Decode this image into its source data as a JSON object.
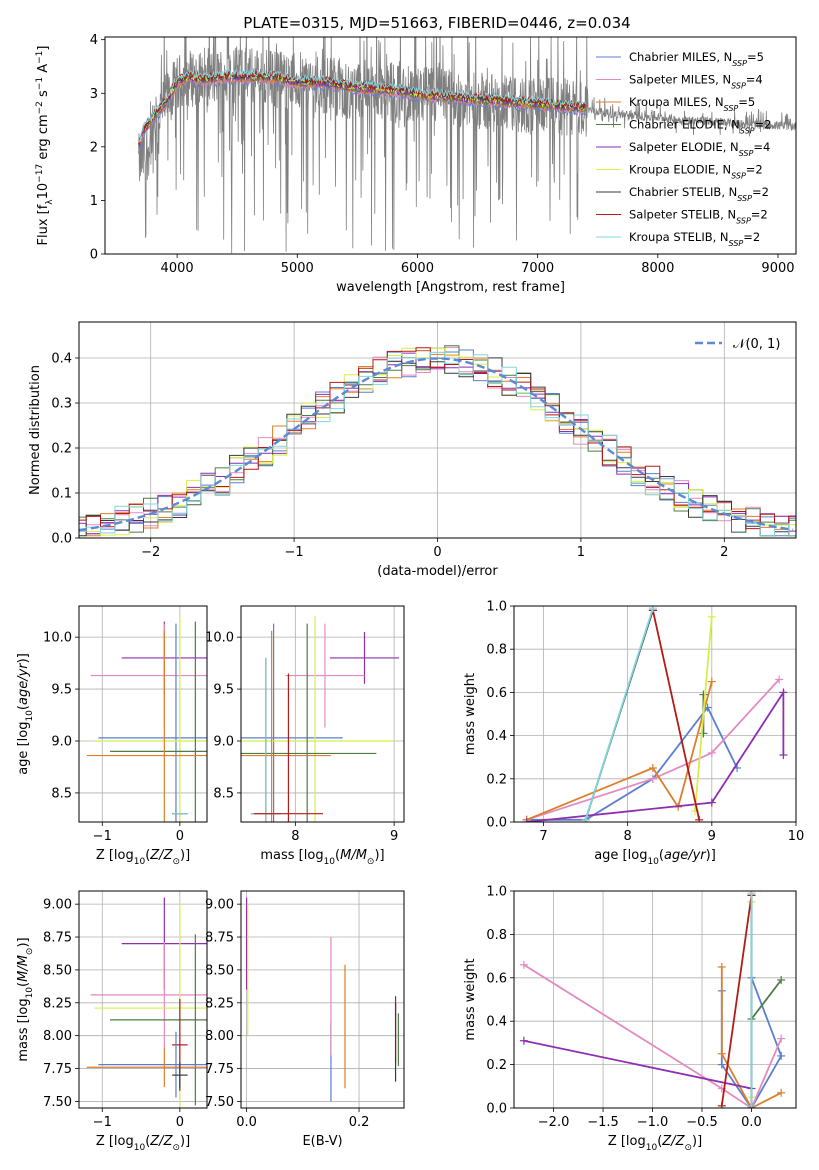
{
  "figure_title": "PLATE=0315, MJD=51663, FIBERID=0446, z=0.034",
  "colors": {
    "Chabrier MILES": "#5b7fd0",
    "Salpeter MILES": "#e38ac1",
    "Kroupa MILES": "#dd7e2a",
    "Chabrier ELODIE": "#4f7b45",
    "Salpeter ELODIE": "#8e2fb0",
    "Kroupa ELODIE": "#d8ee47",
    "Chabrier STELIB": "#3a3a3a",
    "Salpeter STELIB": "#b51b16",
    "Kroupa STELIB": "#83d5dd",
    "data": "#7f7f7f",
    "normal": "#5b8ad6"
  },
  "chart_data": [
    {
      "type": "line",
      "title": "PLATE=0315, MJD=51663, FIBERID=0446, z=0.034",
      "xlabel": "wavelength [Angstrom, rest frame]",
      "ylabel": "Flux [f_λ 10^-17 erg cm^-2 s^-1 A^-1]",
      "xlim": [
        3400,
        9150
      ],
      "ylim": [
        0,
        4.05
      ],
      "xticks": [
        4000,
        5000,
        6000,
        7000,
        8000,
        9000
      ],
      "yticks": [
        0,
        1,
        2,
        3,
        4
      ],
      "legend_position": "top-right",
      "legend": [
        {
          "label": "Chabrier MILES",
          "nssp": "5"
        },
        {
          "label": "Salpeter MILES",
          "nssp": "4"
        },
        {
          "label": "Kroupa MILES",
          "nssp": "5"
        },
        {
          "label": "Chabrier ELODIE",
          "nssp": "2"
        },
        {
          "label": "Salpeter ELODIE",
          "nssp": "4"
        },
        {
          "label": "Kroupa ELODIE",
          "nssp": "2"
        },
        {
          "label": "Chabrier STELIB",
          "nssp": "2"
        },
        {
          "label": "Salpeter STELIB",
          "nssp": "2"
        },
        {
          "label": "Kroupa STELIB",
          "nssp": "2"
        }
      ],
      "legend_nssp_label": "N_SSP",
      "data_series": {
        "x": [
          3680,
          3750,
          3850,
          3950,
          4050,
          4150,
          4300,
          4500,
          4700,
          4900,
          5100,
          5300,
          5500,
          5700,
          5900,
          6100,
          6300,
          6500,
          6700,
          6900,
          7100,
          7300,
          7420,
          7600,
          7800,
          8000,
          8200,
          8400,
          8600,
          8800,
          9000,
          9150
        ],
        "y": [
          1.7,
          1.9,
          2.6,
          3.0,
          3.25,
          3.3,
          3.3,
          3.35,
          3.3,
          3.25,
          3.2,
          3.15,
          3.1,
          3.05,
          3.0,
          2.95,
          2.9,
          2.85,
          2.8,
          2.78,
          2.75,
          2.72,
          2.7,
          2.62,
          2.58,
          2.55,
          2.5,
          2.48,
          2.45,
          2.42,
          2.4,
          2.38
        ]
      },
      "model_envelope": {
        "x": [
          3680,
          3720,
          3800,
          3900,
          4000,
          4100,
          4200,
          4400,
          4600,
          4800,
          5000,
          5200,
          5500,
          5800,
          6100,
          6400,
          6700,
          7000,
          7200,
          7400
        ],
        "y": [
          2.0,
          2.3,
          2.55,
          2.8,
          3.2,
          3.3,
          3.25,
          3.3,
          3.3,
          3.3,
          3.2,
          3.2,
          3.1,
          3.05,
          2.95,
          2.9,
          2.85,
          2.8,
          2.75,
          2.72
        ]
      }
    },
    {
      "type": "histogram",
      "xlabel": "(data-model)/error",
      "ylabel": "Normed distribution",
      "xlim": [
        -2.5,
        2.5
      ],
      "ylim": [
        0,
        0.48
      ],
      "xticks": [
        -2,
        -1,
        0,
        1,
        2
      ],
      "yticks": [
        0.0,
        0.1,
        0.2,
        0.3,
        0.4
      ],
      "legend_position": "top-right",
      "legend": [
        "𝒩(0, 1)"
      ],
      "bin_width": 0.1,
      "reference_curve": "normal(0,1)"
    },
    {
      "type": "errorbar",
      "xlabel": "Z [log10(Z/Z⊙)]",
      "ylabel": "age  [log10(age/yr)]",
      "xlim": [
        -1.3,
        0.35
      ],
      "ylim": [
        8.22,
        10.3
      ],
      "xticks": [
        -1,
        0
      ],
      "yticks": [
        8.5,
        9.0,
        9.5,
        10.0
      ],
      "points": [
        {
          "model": "Salpeter ELODIE",
          "x": -0.2,
          "y": 9.8,
          "xerr": 0.55,
          "yerr": 0.35
        },
        {
          "model": "Salpeter MILES",
          "x": -0.2,
          "y": 9.63,
          "xerr": 0.95,
          "yerr": 0.5
        },
        {
          "model": "Chabrier MILES",
          "x": -0.05,
          "y": 9.03,
          "xerr": 1.0,
          "yerr": 1.1
        },
        {
          "model": "Kroupa ELODIE",
          "x": 0.0,
          "y": 9.0,
          "xerr": 1.1,
          "yerr": 1.2
        },
        {
          "model": "Chabrier ELODIE",
          "x": 0.2,
          "y": 8.9,
          "xerr": 1.1,
          "yerr": 1.25
        },
        {
          "model": "Kroupa MILES",
          "x": -0.2,
          "y": 8.86,
          "xerr": 1.0,
          "yerr": 1.2
        },
        {
          "model": "Chabrier STELIB",
          "x": 0.0,
          "y": 8.3,
          "xerr": 0.1,
          "yerr": 0.0
        },
        {
          "model": "Kroupa STELIB",
          "x": 0.0,
          "y": 8.3,
          "xerr": 0.1,
          "yerr": 0.0
        }
      ]
    },
    {
      "type": "errorbar",
      "xlabel": "mass [log10(M/M⊙)]",
      "xlim": [
        7.45,
        9.1
      ],
      "ylim": [
        8.22,
        10.3
      ],
      "xticks": [
        8,
        9
      ],
      "yticks": [
        8.5,
        9.0,
        9.5,
        10.0
      ],
      "points": [
        {
          "model": "Salpeter ELODIE",
          "x": 8.7,
          "y": 9.8,
          "xerr": 0.35,
          "yerr": 0.25
        },
        {
          "model": "Salpeter MILES",
          "x": 8.3,
          "y": 9.63,
          "xerr": 0.4,
          "yerr": 0.5
        },
        {
          "model": "Chabrier MILES",
          "x": 7.78,
          "y": 9.03,
          "xerr": 0.7,
          "yerr": 1.1
        },
        {
          "model": "Kroupa ELODIE",
          "x": 8.2,
          "y": 9.0,
          "xerr": 0.8,
          "yerr": 1.2
        },
        {
          "model": "Chabrier ELODIE",
          "x": 8.12,
          "y": 8.88,
          "xerr": 0.7,
          "yerr": 1.25
        },
        {
          "model": "Kroupa MILES",
          "x": 7.76,
          "y": 8.86,
          "xerr": 0.6,
          "yerr": 1.2
        },
        {
          "model": "Chabrier STELIB",
          "x": 7.7,
          "y": 8.3,
          "xerr": 0.15,
          "yerr": 1.5
        },
        {
          "model": "Kroupa STELIB",
          "x": 7.7,
          "y": 8.3,
          "xerr": 0.15,
          "yerr": 1.5
        },
        {
          "model": "Salpeter STELIB",
          "x": 7.93,
          "y": 8.3,
          "xerr": 0.35,
          "yerr": 1.35
        }
      ]
    },
    {
      "type": "line",
      "xlabel": "age  [log10(age/yr)]",
      "ylabel": "mass weight",
      "xlim": [
        6.65,
        10.0
      ],
      "ylim": [
        0,
        1
      ],
      "xticks": [
        7,
        8,
        9,
        10
      ],
      "yticks": [
        0.0,
        0.2,
        0.4,
        0.6,
        0.8,
        1.0
      ],
      "series": [
        {
          "model": "Chabrier MILES",
          "x": [
            6.8,
            7.5,
            8.3,
            8.95,
            9.3
          ],
          "y": [
            0.01,
            0.01,
            0.2,
            0.53,
            0.25
          ]
        },
        {
          "model": "Salpeter MILES",
          "x": [
            6.8,
            8.3,
            9.0,
            9.8
          ],
          "y": [
            0.01,
            0.2,
            0.32,
            0.66
          ]
        },
        {
          "model": "Kroupa MILES",
          "x": [
            6.8,
            8.3,
            8.6,
            9.0
          ],
          "y": [
            0.01,
            0.25,
            0.07,
            0.65
          ]
        },
        {
          "model": "Chabrier ELODIE",
          "x": [
            8.9,
            8.9
          ],
          "y": [
            0.41,
            0.59
          ]
        },
        {
          "model": "Salpeter ELODIE",
          "x": [
            6.8,
            9.0,
            9.85,
            9.85
          ],
          "y": [
            0.0,
            0.09,
            0.6,
            0.31
          ]
        },
        {
          "model": "Kroupa ELODIE",
          "x": [
            8.8,
            9.0
          ],
          "y": [
            0.05,
            0.95
          ]
        },
        {
          "model": "Chabrier STELIB",
          "x": [
            7.5,
            8.3
          ],
          "y": [
            0.01,
            0.98
          ]
        },
        {
          "model": "Salpeter STELIB",
          "x": [
            8.3,
            8.85
          ],
          "y": [
            0.98,
            0.01
          ]
        },
        {
          "model": "Kroupa STELIB",
          "x": [
            7.5,
            8.3
          ],
          "y": [
            0.01,
            0.99
          ]
        }
      ]
    },
    {
      "type": "errorbar",
      "xlabel": "Z [log10(Z/Z⊙)]",
      "ylabel": "mass [log10(M/M⊙)]",
      "xlim": [
        -1.3,
        0.35
      ],
      "ylim": [
        7.45,
        9.1
      ],
      "xticks": [
        -1,
        0
      ],
      "yticks": [
        7.5,
        7.75,
        8.0,
        8.25,
        8.5,
        8.75,
        9.0
      ],
      "points": [
        {
          "model": "Salpeter ELODIE",
          "x": -0.2,
          "y": 8.7,
          "xerr": 0.55,
          "yerr": 0.35
        },
        {
          "model": "Salpeter MILES",
          "x": -0.2,
          "y": 8.31,
          "xerr": 0.95,
          "yerr": 0.4
        },
        {
          "model": "Kroupa ELODIE",
          "x": 0.0,
          "y": 8.21,
          "xerr": 1.1,
          "yerr": 0.8
        },
        {
          "model": "Chabrier ELODIE",
          "x": 0.2,
          "y": 8.12,
          "xerr": 1.1,
          "yerr": 0.65
        },
        {
          "model": "Salpeter STELIB",
          "x": 0.0,
          "y": 7.93,
          "xerr": 0.1,
          "yerr": 0.35
        },
        {
          "model": "Chabrier MILES",
          "x": -0.05,
          "y": 7.78,
          "xerr": 1.0,
          "yerr": 0.25
        },
        {
          "model": "Kroupa MILES",
          "x": -0.2,
          "y": 7.76,
          "xerr": 1.0,
          "yerr": 0.15
        },
        {
          "model": "Chabrier STELIB",
          "x": 0.0,
          "y": 7.7,
          "xerr": 0.1,
          "yerr": 0.1
        }
      ]
    },
    {
      "type": "errorbar",
      "xlabel": "E(B-V)",
      "xlim": [
        -0.01,
        0.28
      ],
      "ylim": [
        7.45,
        9.1
      ],
      "xticks": [
        0.0,
        0.2
      ],
      "yticks": [
        7.5,
        7.75,
        8.0,
        8.25,
        8.5,
        8.75,
        9.0
      ],
      "points": [
        {
          "model": "Salpeter ELODIE",
          "x": 0.0,
          "y": 8.7,
          "yerr": 0.35
        },
        {
          "model": "Kroupa ELODIE",
          "x": 0.002,
          "y": 8.5,
          "yerr": 0.5
        },
        {
          "model": "Chabrier MILES",
          "x": 0.15,
          "y": 7.8,
          "yerr": 0.3
        },
        {
          "model": "Salpeter MILES",
          "x": 0.15,
          "y": 8.3,
          "yerr": 0.45
        },
        {
          "model": "Kroupa MILES",
          "x": 0.175,
          "y": 8.07,
          "yerr": 0.47
        },
        {
          "model": "Salpeter STELIB",
          "x": 0.265,
          "y": 8.05,
          "yerr": 0.25
        },
        {
          "model": "Chabrier ELODIE",
          "x": 0.27,
          "y": 7.97,
          "yerr": 0.2
        },
        {
          "model": "Chabrier STELIB",
          "x": 0.265,
          "y": 7.95,
          "yerr": 0.3
        }
      ]
    },
    {
      "type": "line",
      "xlabel": "Z [log10(Z/Z⊙)]",
      "ylabel": "mass weight",
      "xlim": [
        -2.4,
        0.45
      ],
      "ylim": [
        0,
        1
      ],
      "xticks": [
        -2.0,
        -1.5,
        -1.0,
        -0.5,
        0.0
      ],
      "yticks": [
        0.0,
        0.2,
        0.4,
        0.6,
        0.8,
        1.0
      ],
      "series": [
        {
          "model": "Chabrier MILES",
          "x": [
            -0.3,
            -0.3,
            0.0,
            0.3,
            0.0,
            0.0
          ],
          "y": [
            0.54,
            0.2,
            0.0,
            0.24,
            0.6,
            0.0
          ]
        },
        {
          "model": "Salpeter MILES",
          "x": [
            -2.3,
            -0.3,
            0.0,
            0.3
          ],
          "y": [
            0.66,
            0.09,
            0.0,
            0.32
          ]
        },
        {
          "model": "Kroupa MILES",
          "x": [
            -0.3,
            -0.3,
            0.0,
            0.3
          ],
          "y": [
            0.65,
            0.25,
            0.0,
            0.07
          ]
        },
        {
          "model": "Chabrier ELODIE",
          "x": [
            0.0,
            0.3
          ],
          "y": [
            0.41,
            0.59
          ]
        },
        {
          "model": "Salpeter ELODIE",
          "x": [
            -2.3,
            0.0,
            0.0
          ],
          "y": [
            0.31,
            0.09,
            0.0
          ]
        },
        {
          "model": "Kroupa ELODIE",
          "x": [
            0.0,
            0.0
          ],
          "y": [
            0.05,
            0.95
          ]
        },
        {
          "model": "Chabrier STELIB",
          "x": [
            0.0,
            0.0
          ],
          "y": [
            0.01,
            0.98
          ]
        },
        {
          "model": "Salpeter STELIB",
          "x": [
            -0.3,
            0.0
          ],
          "y": [
            0.01,
            0.98
          ]
        },
        {
          "model": "Kroupa STELIB",
          "x": [
            0.0,
            0.0
          ],
          "y": [
            0.01,
            0.99
          ]
        }
      ]
    }
  ]
}
